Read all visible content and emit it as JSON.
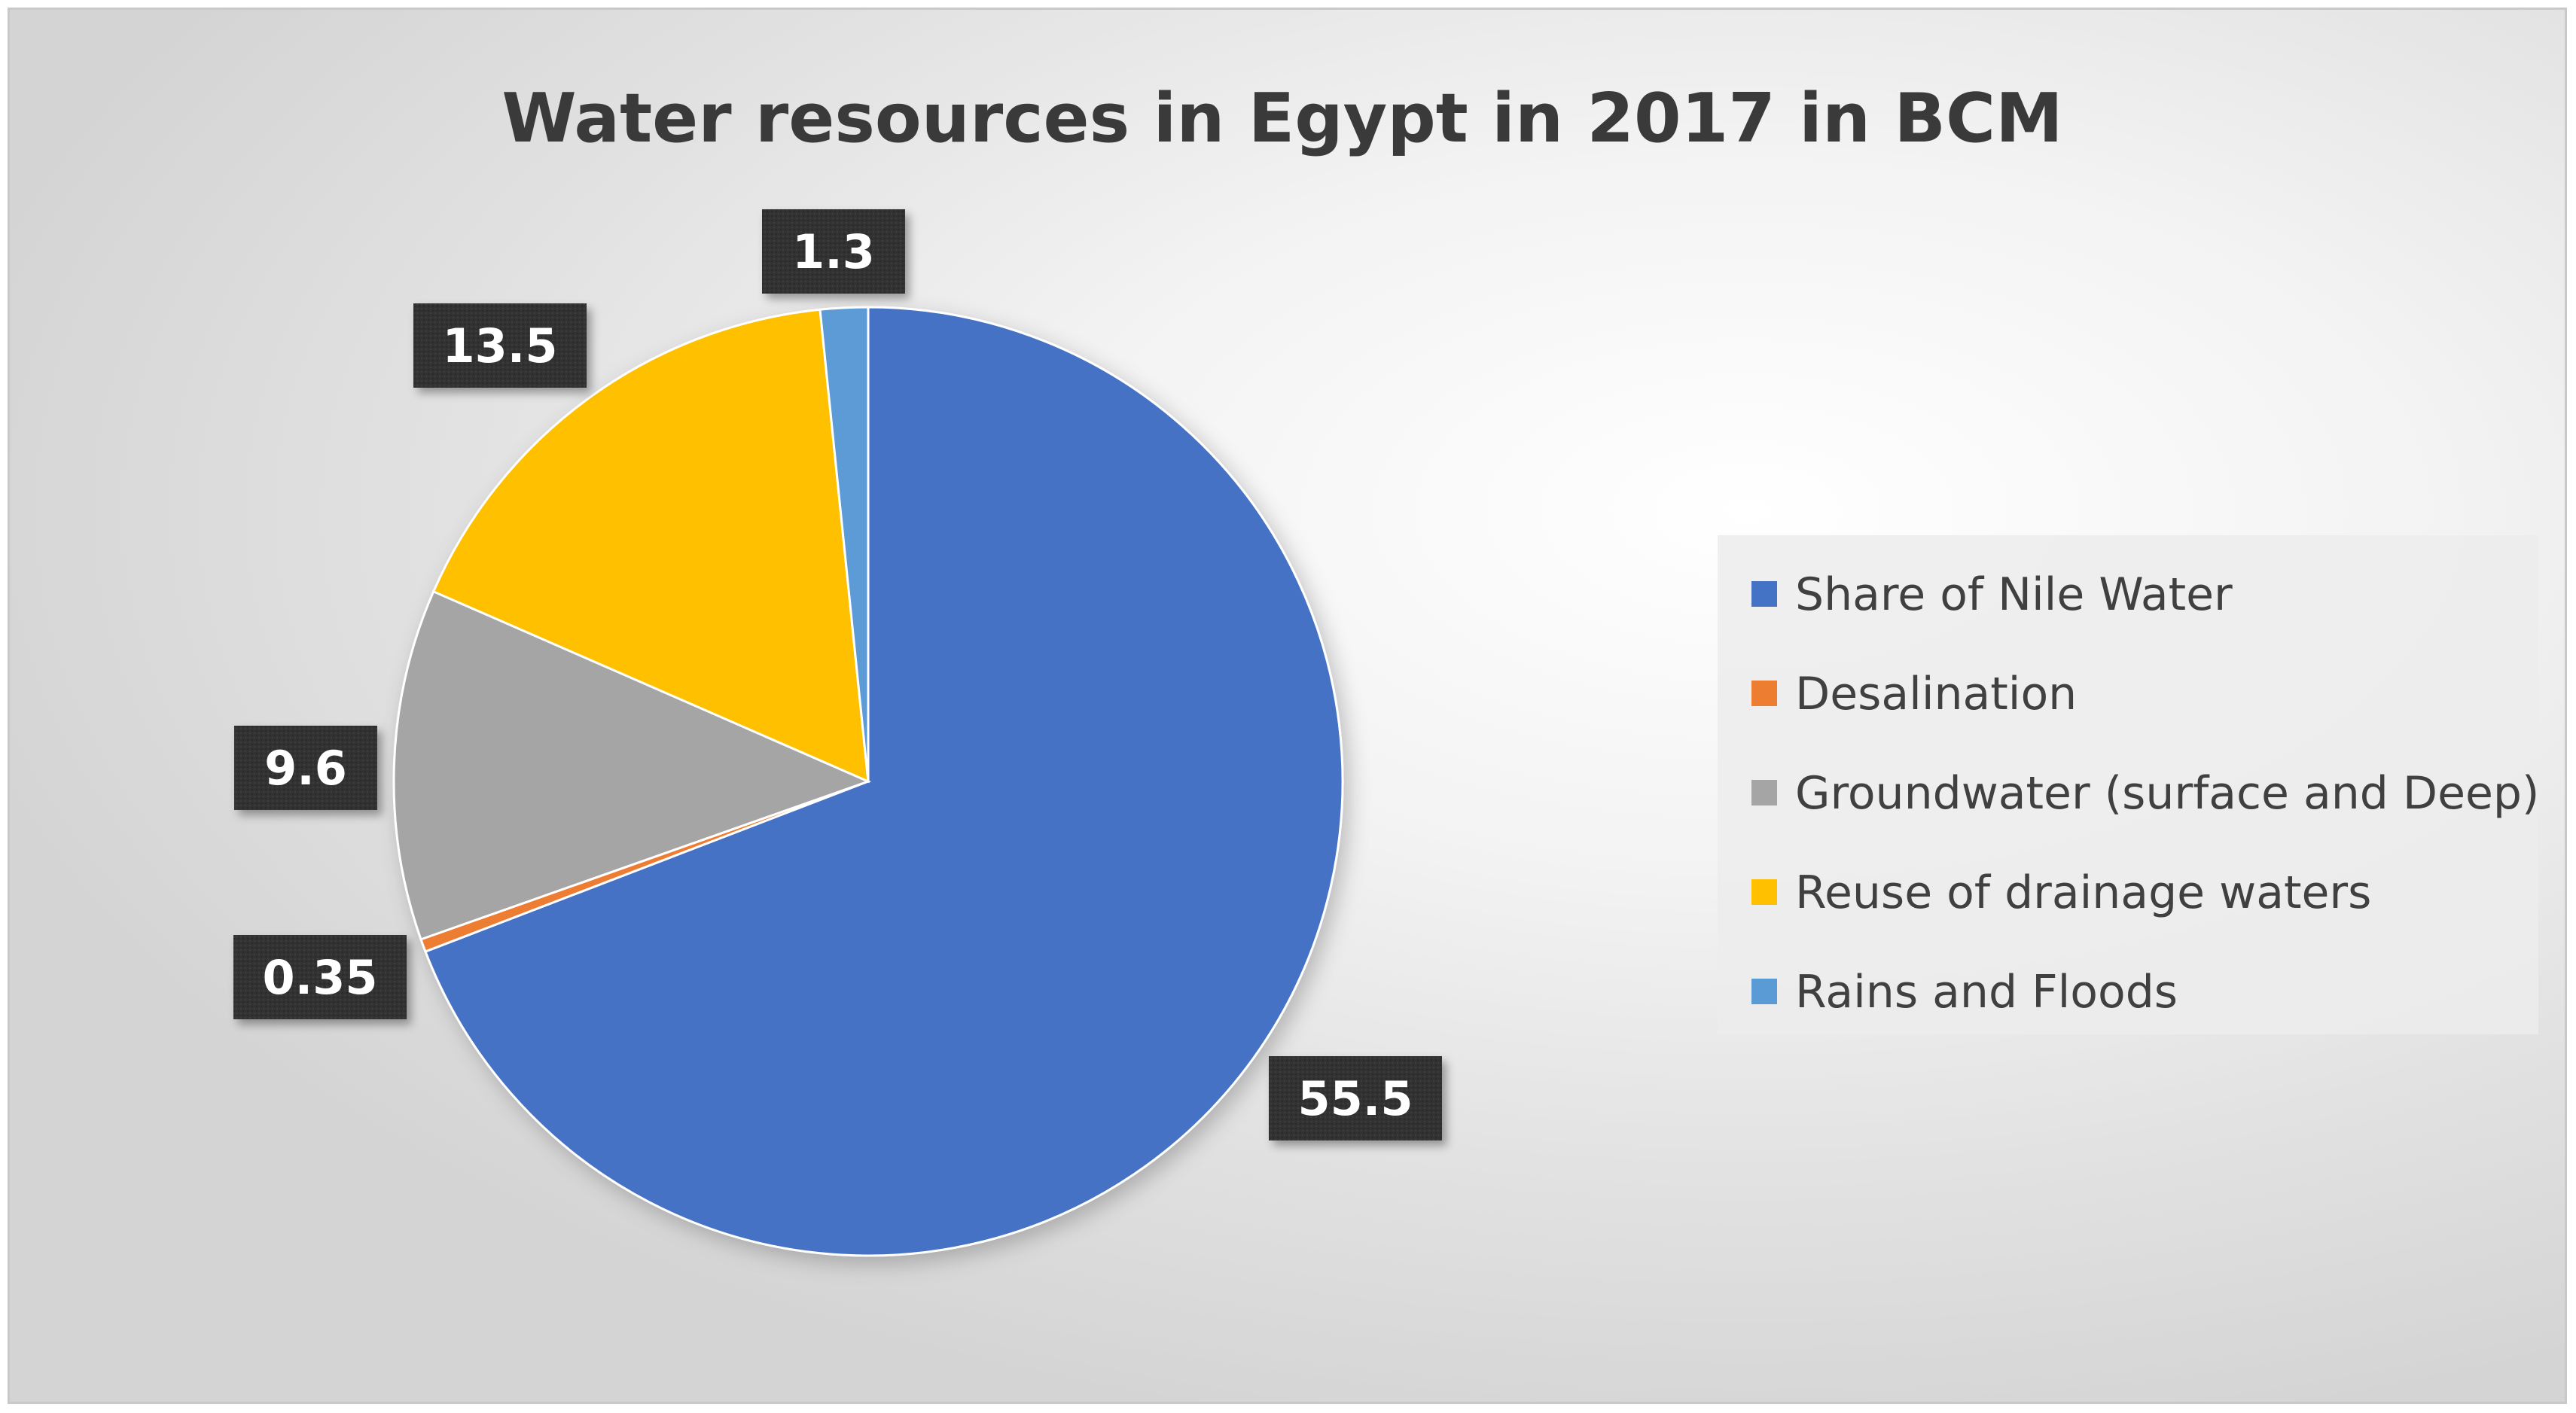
{
  "chart_data": {
    "type": "pie",
    "title": "Water resources in Egypt in 2017 in BCM",
    "categories": [
      "Share of Nile Water",
      "Desalination",
      " Groundwater (surface and Deep)",
      "Reuse of drainage waters",
      "Rains and Floods"
    ],
    "values": [
      55.5,
      0.35,
      9.6,
      13.5,
      1.3
    ],
    "data_labels": [
      "55.5",
      "0.35",
      "9.6",
      "13.5",
      "1.3"
    ],
    "colors": [
      "#4472C4",
      "#ED7D31",
      "#A5A5A5",
      "#FFC000",
      "#5B9BD5"
    ],
    "legend_position": "right",
    "start_angle_deg": 0,
    "direction": "clockwise"
  }
}
